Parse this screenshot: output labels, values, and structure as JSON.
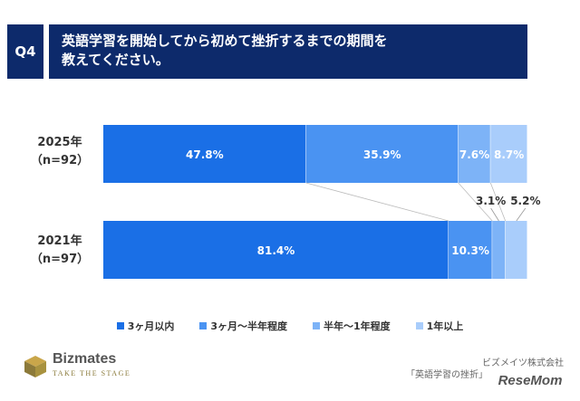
{
  "header": {
    "q_label": "Q4",
    "title_line1": "英語学習を開始してから初めて挫折するまでの期間を",
    "title_line2": "教えてください。"
  },
  "rows": [
    {
      "year": "2025年",
      "n": "（n=92）"
    },
    {
      "year": "2021年",
      "n": "（n=97）"
    }
  ],
  "chart_data": {
    "type": "bar",
    "orientation": "horizontal",
    "stacked": true,
    "categories": [
      "2025年（n=92）",
      "2021年（n=97）"
    ],
    "series": [
      {
        "name": "3ヶ月以内",
        "color": "#1a6fe6",
        "values": [
          47.8,
          81.4
        ],
        "labels": [
          "47.8%",
          "81.4%"
        ]
      },
      {
        "name": "3ヶ月〜半年程度",
        "color": "#4a93f2",
        "values": [
          35.9,
          10.3
        ],
        "labels": [
          "35.9%",
          "10.3%"
        ]
      },
      {
        "name": "半年〜1年程度",
        "color": "#7db3f7",
        "values": [
          7.6,
          3.1
        ],
        "labels": [
          "7.6%",
          "3.1%"
        ]
      },
      {
        "name": "1年以上",
        "color": "#a9cdfb",
        "values": [
          8.7,
          5.2
        ],
        "labels": [
          "8.7%",
          "5.2%"
        ]
      }
    ],
    "xlim": [
      0,
      100
    ],
    "grid": false,
    "legend_position": "bottom"
  },
  "footer": {
    "brand": "Bizmates",
    "tagline": "TAKE THE STAGE",
    "company": "ビズメイツ株式会社",
    "survey": "「英語学習の挫折」",
    "watermark": "ReseMom"
  }
}
